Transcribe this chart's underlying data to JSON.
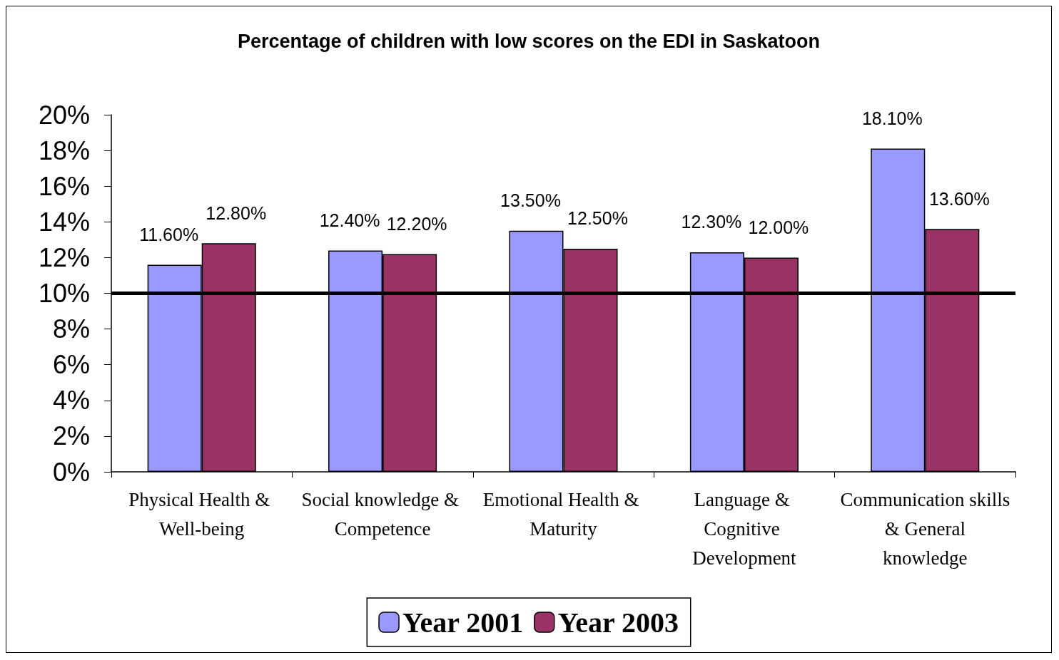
{
  "chart_data": {
    "type": "bar",
    "title": "Percentage of children with low scores on the EDI in Saskatoon",
    "categories": [
      "Physical Health & Well-being",
      "Social knowledge & Competence",
      "Emotional Health & Maturity",
      "Language & Cognitive Development",
      "Communication skills & General knowledge"
    ],
    "series": [
      {
        "name": "Year 2001",
        "color": "#9999ff",
        "values": [
          11.6,
          12.4,
          13.5,
          12.3,
          18.1
        ],
        "value_labels": [
          "11.60%",
          "12.40%",
          "13.50%",
          "12.30%",
          "18.10%"
        ]
      },
      {
        "name": "Year 2003",
        "color": "#993366",
        "values": [
          12.8,
          12.2,
          12.5,
          12.0,
          13.6
        ],
        "value_labels": [
          "12.80%",
          "12.20%",
          "12.50%",
          "12.00%",
          "13.60%"
        ]
      }
    ],
    "ylim": [
      0,
      20
    ],
    "yticks": [
      {
        "value": 0,
        "label": "0%"
      },
      {
        "value": 2,
        "label": "2%"
      },
      {
        "value": 4,
        "label": "4%"
      },
      {
        "value": 6,
        "label": "6%"
      },
      {
        "value": 8,
        "label": "8%"
      },
      {
        "value": 10,
        "label": "10%"
      },
      {
        "value": 12,
        "label": "12%"
      },
      {
        "value": 14,
        "label": "14%"
      },
      {
        "value": 16,
        "label": "16%"
      },
      {
        "value": 18,
        "label": "18%"
      },
      {
        "value": 20,
        "label": "20%"
      }
    ],
    "ref_lines": [
      {
        "axis": "y",
        "value": 10,
        "color": "#000000"
      }
    ],
    "grid": false,
    "legend": "bottom"
  }
}
